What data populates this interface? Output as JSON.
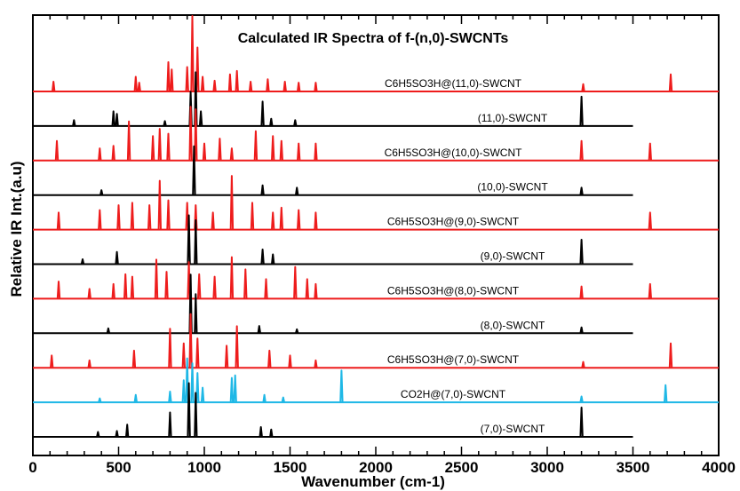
{
  "chart_data": {
    "type": "line",
    "title": "Calculated IR Spectra of f-(n,0)-SWCNTs",
    "xlabel": "Wavenumber (cm-1)",
    "ylabel": "Relative IR Int.(a.u)",
    "xlim": [
      0,
      4000
    ],
    "x_ticks": [
      "0",
      "500",
      "1000",
      "1500",
      "2000",
      "2500",
      "3000",
      "3500",
      "4000"
    ],
    "grid": false,
    "legend": "none",
    "colors": {
      "functionalized": "#ee1c1c",
      "pristine": "#000000",
      "carboxyl": "#1fb8e6"
    },
    "series": [
      {
        "name": "C6H5SO3H@(11,0)-SWCNT",
        "color": "#ee1c1c",
        "x_end": 4000,
        "peaks": [
          [
            120,
            0.2
          ],
          [
            600,
            0.3
          ],
          [
            620,
            0.18
          ],
          [
            790,
            0.6
          ],
          [
            810,
            0.45
          ],
          [
            900,
            0.5
          ],
          [
            930,
            1.55
          ],
          [
            960,
            0.9
          ],
          [
            990,
            0.3
          ],
          [
            1060,
            0.22
          ],
          [
            1150,
            0.35
          ],
          [
            1190,
            0.42
          ],
          [
            1270,
            0.2
          ],
          [
            1370,
            0.25
          ],
          [
            1470,
            0.2
          ],
          [
            1550,
            0.18
          ],
          [
            1650,
            0.18
          ],
          [
            3210,
            0.15
          ],
          [
            3720,
            0.35
          ]
        ]
      },
      {
        "name": "(11,0)-SWCNT",
        "color": "#000000",
        "x_end": 3500,
        "peaks": [
          [
            240,
            0.12
          ],
          [
            470,
            0.3
          ],
          [
            490,
            0.25
          ],
          [
            770,
            0.1
          ],
          [
            920,
            0.7
          ],
          [
            950,
            1.1
          ],
          [
            980,
            0.3
          ],
          [
            1340,
            0.5
          ],
          [
            1390,
            0.15
          ],
          [
            1530,
            0.12
          ],
          [
            3200,
            0.6
          ]
        ]
      },
      {
        "name": "C6H5SO3H@(10,0)-SWCNT",
        "color": "#ee1c1c",
        "x_end": 4000,
        "peaks": [
          [
            140,
            0.4
          ],
          [
            390,
            0.25
          ],
          [
            470,
            0.3
          ],
          [
            560,
            0.8
          ],
          [
            700,
            0.5
          ],
          [
            740,
            0.65
          ],
          [
            790,
            0.55
          ],
          [
            920,
            1.1
          ],
          [
            950,
            1.05
          ],
          [
            1000,
            0.35
          ],
          [
            1090,
            0.45
          ],
          [
            1160,
            0.25
          ],
          [
            1300,
            0.6
          ],
          [
            1400,
            0.5
          ],
          [
            1450,
            0.4
          ],
          [
            1550,
            0.35
          ],
          [
            1650,
            0.35
          ],
          [
            3200,
            0.4
          ],
          [
            3600,
            0.35
          ]
        ]
      },
      {
        "name": "(10,0)-SWCNT",
        "color": "#000000",
        "x_end": 3500,
        "peaks": [
          [
            400,
            0.1
          ],
          [
            940,
            1.0
          ],
          [
            1340,
            0.2
          ],
          [
            1540,
            0.15
          ],
          [
            3200,
            0.15
          ]
        ]
      },
      {
        "name": "C6H5SO3H@(9,0)-SWCNT",
        "color": "#ee1c1c",
        "x_end": 4000,
        "peaks": [
          [
            150,
            0.35
          ],
          [
            390,
            0.4
          ],
          [
            500,
            0.5
          ],
          [
            580,
            0.55
          ],
          [
            680,
            0.5
          ],
          [
            740,
            1.0
          ],
          [
            790,
            0.6
          ],
          [
            900,
            0.55
          ],
          [
            950,
            0.5
          ],
          [
            1050,
            0.35
          ],
          [
            1160,
            1.1
          ],
          [
            1280,
            0.55
          ],
          [
            1400,
            0.35
          ],
          [
            1450,
            0.45
          ],
          [
            1550,
            0.4
          ],
          [
            1650,
            0.35
          ],
          [
            3600,
            0.35
          ]
        ]
      },
      {
        "name": "(9,0)-SWCNT",
        "color": "#000000",
        "x_end": 3500,
        "peaks": [
          [
            290,
            0.1
          ],
          [
            490,
            0.25
          ],
          [
            910,
            1.0
          ],
          [
            950,
            0.9
          ],
          [
            1340,
            0.3
          ],
          [
            1400,
            0.2
          ],
          [
            3200,
            0.5
          ]
        ]
      },
      {
        "name": "C6H5SO3H@(8,0)-SWCNT",
        "color": "#ee1c1c",
        "x_end": 4000,
        "peaks": [
          [
            150,
            0.35
          ],
          [
            330,
            0.2
          ],
          [
            470,
            0.3
          ],
          [
            540,
            0.5
          ],
          [
            580,
            0.45
          ],
          [
            720,
            0.8
          ],
          [
            780,
            0.55
          ],
          [
            910,
            0.75
          ],
          [
            970,
            0.5
          ],
          [
            1060,
            0.45
          ],
          [
            1160,
            0.85
          ],
          [
            1240,
            0.6
          ],
          [
            1360,
            0.4
          ],
          [
            1530,
            0.65
          ],
          [
            1600,
            0.4
          ],
          [
            1650,
            0.3
          ],
          [
            3200,
            0.25
          ],
          [
            3600,
            0.3
          ]
        ]
      },
      {
        "name": "(8,0)-SWCNT",
        "color": "#000000",
        "x_end": 3500,
        "peaks": [
          [
            440,
            0.1
          ],
          [
            920,
            1.2
          ],
          [
            950,
            0.8
          ],
          [
            1320,
            0.15
          ],
          [
            1540,
            0.08
          ],
          [
            3200,
            0.12
          ]
        ]
      },
      {
        "name": "C6H5SO3H@(7,0)-SWCNT",
        "color": "#ee1c1c",
        "x_end": 4000,
        "peaks": [
          [
            110,
            0.25
          ],
          [
            330,
            0.15
          ],
          [
            590,
            0.35
          ],
          [
            800,
            0.8
          ],
          [
            880,
            0.5
          ],
          [
            920,
            1.1
          ],
          [
            960,
            0.6
          ],
          [
            1130,
            0.45
          ],
          [
            1190,
            0.85
          ],
          [
            1380,
            0.35
          ],
          [
            1500,
            0.25
          ],
          [
            1650,
            0.15
          ],
          [
            3210,
            0.12
          ],
          [
            3720,
            0.5
          ]
        ]
      },
      {
        "name": "CO2H@(7,0)-SWCNT",
        "color": "#1fb8e6",
        "x_end": 4000,
        "peaks": [
          [
            390,
            0.08
          ],
          [
            600,
            0.15
          ],
          [
            800,
            0.22
          ],
          [
            880,
            0.45
          ],
          [
            900,
            0.9
          ],
          [
            930,
            0.8
          ],
          [
            960,
            0.6
          ],
          [
            990,
            0.3
          ],
          [
            1160,
            0.5
          ],
          [
            1180,
            0.55
          ],
          [
            1350,
            0.15
          ],
          [
            1460,
            0.1
          ],
          [
            1800,
            0.65
          ],
          [
            3200,
            0.12
          ],
          [
            3690,
            0.35
          ]
        ]
      },
      {
        "name": "(7,0)-SWCNT",
        "color": "#000000",
        "x_end": 3500,
        "peaks": [
          [
            380,
            0.1
          ],
          [
            490,
            0.12
          ],
          [
            550,
            0.25
          ],
          [
            800,
            0.5
          ],
          [
            910,
            1.1
          ],
          [
            950,
            0.9
          ],
          [
            1330,
            0.2
          ],
          [
            1390,
            0.15
          ],
          [
            3200,
            0.6
          ]
        ]
      }
    ]
  }
}
